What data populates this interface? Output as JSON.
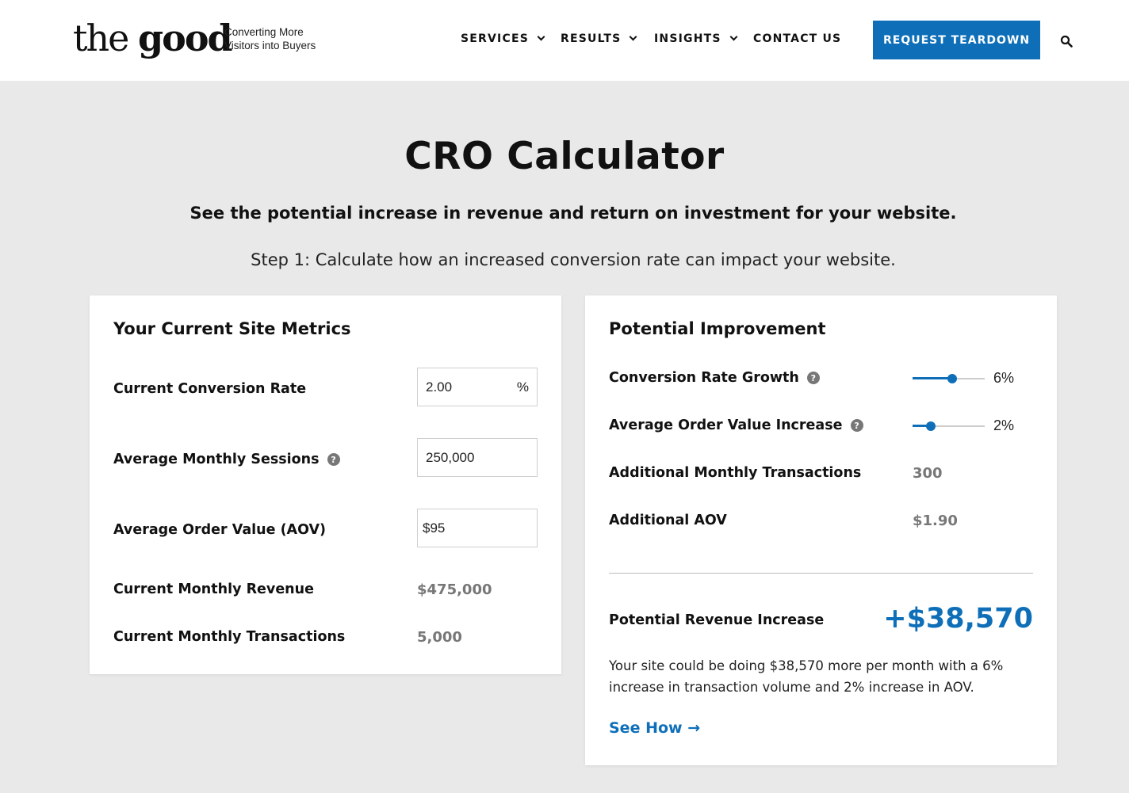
{
  "header": {
    "logo_the": "the",
    "logo_good": "good",
    "tagline_line1": "Converting More",
    "tagline_line2": "Visitors into Buyers",
    "nav": {
      "services": "SERVICES",
      "results": "RESULTS",
      "insights": "INSIGHTS",
      "contact": "CONTACT US"
    },
    "cta": "REQUEST TEARDOWN",
    "search_icon": "search-icon"
  },
  "hero": {
    "title": "CRO Calculator",
    "subtitle": "See the potential increase in revenue and return on investment for your website.",
    "step": "Step 1: Calculate how an increased conversion rate can impact your website."
  },
  "current": {
    "heading": "Your Current Site Metrics",
    "conversion_rate_label": "Current Conversion Rate",
    "conversion_rate_value": "2.00",
    "conversion_rate_unit": "%",
    "sessions_label": "Average Monthly Sessions",
    "sessions_value": "250,000",
    "aov_label": "Average Order Value (AOV)",
    "aov_value": "$95",
    "revenue_label": "Current Monthly Revenue",
    "revenue_value": "$475,000",
    "transactions_label": "Current Monthly Transactions",
    "transactions_value": "5,000"
  },
  "improvement": {
    "heading": "Potential Improvement",
    "crg_label": "Conversion Rate Growth",
    "crg_value": "6%",
    "crg_level": 0.55,
    "aov_inc_label": "Average Order Value Increase",
    "aov_inc_value": "2%",
    "aov_inc_level": 0.25,
    "add_trans_label": "Additional Monthly Transactions",
    "add_trans_value": "300",
    "add_aov_label": "Additional AOV",
    "add_aov_value": "$1.90",
    "revenue_inc_label": "Potential Revenue Increase",
    "revenue_inc_value": "+$38,570",
    "description": "Your site could be doing $38,570 more per month with a 6% increase in transaction volume and 2% increase in AOV.",
    "see_how": "See How →"
  },
  "colors": {
    "accent": "#0e6fb8",
    "background": "#e9e9e9",
    "muted_value": "#777777"
  }
}
